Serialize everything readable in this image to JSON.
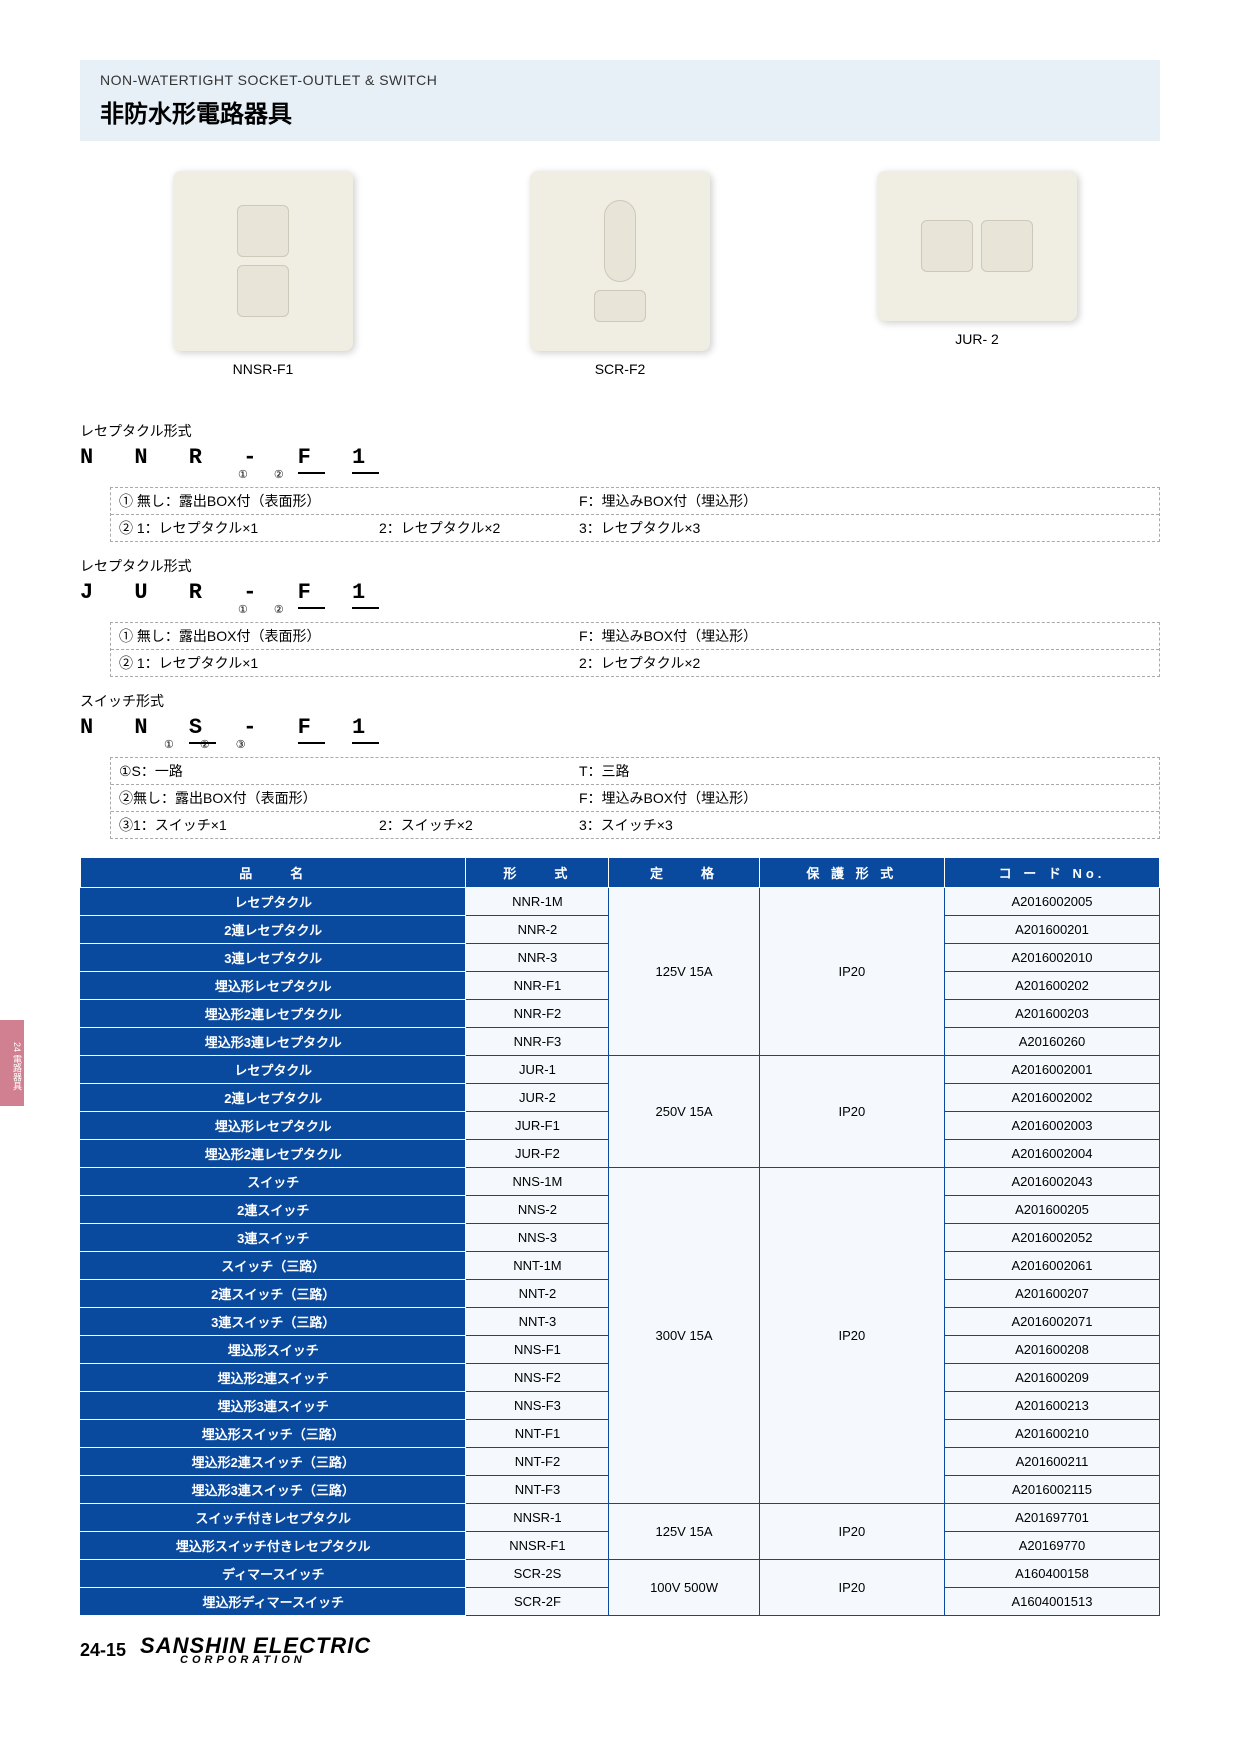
{
  "header": {
    "subtitle": "NON-WATERTIGHT SOCKET-OUTLET & SWITCH",
    "title": "非防水形電路器具"
  },
  "products": [
    {
      "label": "NNSR-F1"
    },
    {
      "label": "SCR-F2"
    },
    {
      "label": "JUR- 2"
    }
  ],
  "formats": [
    {
      "label": "レセプタクル形式",
      "code_prefix": "N N R -",
      "code_opts": [
        "F",
        "1"
      ],
      "circled": [
        "①",
        "②"
      ],
      "rows": [
        {
          "a": "① 無し：露出BOX付（表面形）",
          "b": "",
          "c": "F：埋込みBOX付（埋込形）"
        },
        {
          "a": "② 1：レセプタクル×1",
          "b": "2：レセプタクル×2",
          "c": "3：レセプタクル×3"
        }
      ]
    },
    {
      "label": "レセプタクル形式",
      "code_prefix": "J U R -",
      "code_opts": [
        "F",
        "1"
      ],
      "circled": [
        "①",
        "②"
      ],
      "rows": [
        {
          "a": "① 無し：露出BOX付（表面形）",
          "b": "",
          "c": "F：埋込みBOX付（埋込形）"
        },
        {
          "a": "② 1：レセプタクル×1",
          "b": "",
          "c": "2：レセプタクル×2"
        }
      ]
    },
    {
      "label": "スイッチ形式",
      "code_prefix": "N N",
      "code_opts": [
        "S",
        "-",
        "F",
        "1"
      ],
      "circled": [
        "①",
        "②",
        "③"
      ],
      "rows": [
        {
          "a": "①S：一路",
          "b": "",
          "c": "T：三路"
        },
        {
          "a": "②無し：露出BOX付（表面形）",
          "b": "",
          "c": "F：埋込みBOX付（埋込形）"
        },
        {
          "a": "③1：スイッチ×1",
          "b": "2：スイッチ×2",
          "c": "3：スイッチ×3"
        }
      ]
    }
  ],
  "table": {
    "headers": [
      "品　　名",
      "形　　式",
      "定　　格",
      "保 護 形 式",
      "コ ー ド No."
    ],
    "groups": [
      {
        "rating": "125V 15A",
        "protection": "IP20",
        "rows": [
          {
            "name": "レセプタクル",
            "model": "NNR-1M",
            "code": "A2016002005"
          },
          {
            "name": "2連レセプタクル",
            "model": "NNR-2",
            "code": "A201600201"
          },
          {
            "name": "3連レセプタクル",
            "model": "NNR-3",
            "code": "A2016002010"
          },
          {
            "name": "埋込形レセプタクル",
            "model": "NNR-F1",
            "code": "A201600202"
          },
          {
            "name": "埋込形2連レセプタクル",
            "model": "NNR-F2",
            "code": "A201600203"
          },
          {
            "name": "埋込形3連レセプタクル",
            "model": "NNR-F3",
            "code": "A20160260"
          }
        ]
      },
      {
        "rating": "250V 15A",
        "protection": "IP20",
        "rows": [
          {
            "name": "レセプタクル",
            "model": "JUR-1",
            "code": "A2016002001"
          },
          {
            "name": "2連レセプタクル",
            "model": "JUR-2",
            "code": "A2016002002"
          },
          {
            "name": "埋込形レセプタクル",
            "model": "JUR-F1",
            "code": "A2016002003"
          },
          {
            "name": "埋込形2連レセプタクル",
            "model": "JUR-F2",
            "code": "A2016002004"
          }
        ]
      },
      {
        "rating": "300V 15A",
        "protection": "IP20",
        "rows": [
          {
            "name": "スイッチ",
            "model": "NNS-1M",
            "code": "A2016002043"
          },
          {
            "name": "2連スイッチ",
            "model": "NNS-2",
            "code": "A201600205"
          },
          {
            "name": "3連スイッチ",
            "model": "NNS-3",
            "code": "A2016002052"
          },
          {
            "name": "スイッチ（三路）",
            "model": "NNT-1M",
            "code": "A2016002061"
          },
          {
            "name": "2連スイッチ（三路）",
            "model": "NNT-2",
            "code": "A201600207"
          },
          {
            "name": "3連スイッチ（三路）",
            "model": "NNT-3",
            "code": "A2016002071"
          },
          {
            "name": "埋込形スイッチ",
            "model": "NNS-F1",
            "code": "A201600208"
          },
          {
            "name": "埋込形2連スイッチ",
            "model": "NNS-F2",
            "code": "A201600209"
          },
          {
            "name": "埋込形3連スイッチ",
            "model": "NNS-F3",
            "code": "A201600213"
          },
          {
            "name": "埋込形スイッチ（三路）",
            "model": "NNT-F1",
            "code": "A201600210"
          },
          {
            "name": "埋込形2連スイッチ（三路）",
            "model": "NNT-F2",
            "code": "A201600211"
          },
          {
            "name": "埋込形3連スイッチ（三路）",
            "model": "NNT-F3",
            "code": "A2016002115"
          }
        ]
      },
      {
        "rating": "125V 15A",
        "protection": "IP20",
        "rows": [
          {
            "name": "スイッチ付きレセプタクル",
            "model": "NNSR-1",
            "code": "A201697701"
          },
          {
            "name": "埋込形スイッチ付きレセプタクル",
            "model": "NNSR-F1",
            "code": "A20169770"
          }
        ]
      },
      {
        "rating": "100V 500W",
        "protection": "IP20",
        "rows": [
          {
            "name": "ディマースイッチ",
            "model": "SCR-2S",
            "code": "A160400158"
          },
          {
            "name": "埋込形ディマースイッチ",
            "model": "SCR-2F",
            "code": "A1604001513"
          }
        ]
      }
    ]
  },
  "sideTab": "24 電路器具",
  "pageNum": "24-15",
  "logo": {
    "main": "SANSHIN ELECTRIC",
    "sub": "CORPORATION"
  }
}
